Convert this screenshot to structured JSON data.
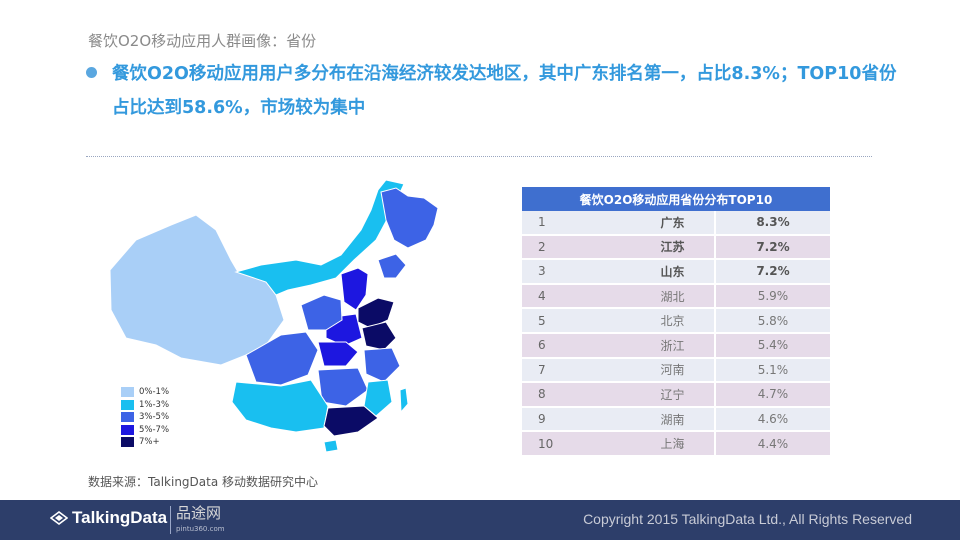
{
  "subtitle": "餐饮O2O移动应用人群画像：省份",
  "headline_line1": "餐饮O2O移动应用用户多分布在沿海经济较发达地区，其中广东排名第一，占比8.3%；TOP10省份",
  "headline_line2": "占比达到58.6%，市场较为集中",
  "legend": [
    {
      "label": "0%-1%",
      "color": "#a9cff7"
    },
    {
      "label": "1%-3%",
      "color": "#19bff0"
    },
    {
      "label": "3%-5%",
      "color": "#3d63e6"
    },
    {
      "label": "5%-7%",
      "color": "#1d17e0"
    },
    {
      "label": "7%+",
      "color": "#0b0b66"
    }
  ],
  "table_title": "餐饮O2O移动应用省份分布TOP10",
  "chart_data": {
    "type": "table",
    "title": "餐饮O2O移动应用省份分布TOP10",
    "rows": [
      {
        "rank": "1",
        "province": "广东",
        "share": "8.3%"
      },
      {
        "rank": "2",
        "province": "江苏",
        "share": "7.2%"
      },
      {
        "rank": "3",
        "province": "山东",
        "share": "7.2%"
      },
      {
        "rank": "4",
        "province": "湖北",
        "share": "5.9%"
      },
      {
        "rank": "5",
        "province": "北京",
        "share": "5.8%"
      },
      {
        "rank": "6",
        "province": "浙江",
        "share": "5.4%"
      },
      {
        "rank": "7",
        "province": "河南",
        "share": "5.1%"
      },
      {
        "rank": "8",
        "province": "辽宁",
        "share": "4.7%"
      },
      {
        "rank": "9",
        "province": "湖南",
        "share": "4.6%"
      },
      {
        "rank": "10",
        "province": "上海",
        "share": "4.4%"
      }
    ]
  },
  "source": "数据来源：TalkingData 移动数据研究中心",
  "footer": {
    "logo": "TalkingData",
    "logo2": "品途网",
    "logo2_small": "pintu360.com",
    "copyright": "Copyright 2015 TalkingData Ltd., All Rights Reserved"
  }
}
